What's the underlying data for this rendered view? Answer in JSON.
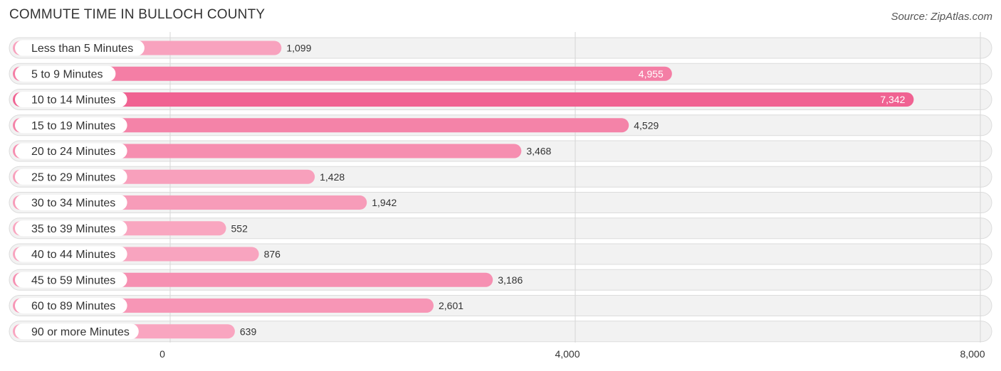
{
  "chart_data": {
    "type": "bar",
    "orientation": "horizontal",
    "title": "COMMUTE TIME IN BULLOCH COUNTY",
    "source": "Source: ZipAtlas.com",
    "categories": [
      "Less than 5 Minutes",
      "5 to 9 Minutes",
      "10 to 14 Minutes",
      "15 to 19 Minutes",
      "20 to 24 Minutes",
      "25 to 29 Minutes",
      "30 to 34 Minutes",
      "35 to 39 Minutes",
      "40 to 44 Minutes",
      "45 to 59 Minutes",
      "60 to 89 Minutes",
      "90 or more Minutes"
    ],
    "values": [
      1099,
      4955,
      7342,
      4529,
      3468,
      1428,
      1942,
      552,
      876,
      3186,
      2601,
      639
    ],
    "value_labels": [
      "1,099",
      "4,955",
      "7,342",
      "4,529",
      "3,468",
      "1,428",
      "1,942",
      "552",
      "876",
      "3,186",
      "2,601",
      "639"
    ],
    "xlim": [
      0,
      8000
    ],
    "xticks": [
      0,
      4000,
      8000
    ],
    "xtick_labels": [
      "0",
      "4,000",
      "8,000"
    ],
    "grid": true,
    "colors": {
      "bar_light": "#f9a8c2",
      "bar_dark": "#f06292",
      "row_bg": "#f2f2f2"
    }
  }
}
